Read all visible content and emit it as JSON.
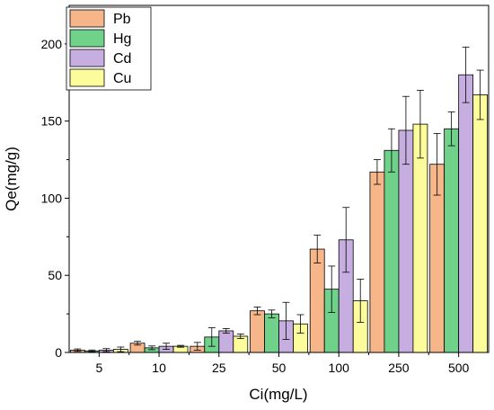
{
  "chart_data": {
    "type": "bar",
    "xlabel": "Ci(mg/L)",
    "ylabel": "Qe(mg/g)",
    "categories": [
      "5",
      "10",
      "25",
      "50",
      "100",
      "250",
      "500"
    ],
    "ylim": [
      0,
      225
    ],
    "yticks": [
      0,
      50,
      100,
      150,
      200
    ],
    "legend_position": "top-left",
    "series": [
      {
        "name": "Pb",
        "color": "#f7b58a",
        "values": [
          1.5,
          6,
          4,
          27,
          67,
          117,
          122
        ],
        "errors": [
          0.8,
          1.2,
          2.5,
          2.5,
          9,
          8,
          20
        ]
      },
      {
        "name": "Hg",
        "color": "#6fd18a",
        "values": [
          1,
          3,
          10,
          25,
          41,
          131,
          145
        ],
        "errors": [
          0.6,
          1.2,
          6,
          2.5,
          15,
          14,
          11
        ]
      },
      {
        "name": "Cd",
        "color": "#c6aee0",
        "values": [
          1.5,
          4,
          14,
          20.5,
          73,
          144,
          180
        ],
        "errors": [
          1,
          2,
          1.5,
          12,
          21,
          22,
          18
        ]
      },
      {
        "name": "Cu",
        "color": "#fcfc9c",
        "values": [
          2,
          4,
          10.5,
          18.5,
          33.5,
          148,
          167
        ],
        "errors": [
          1.5,
          0.6,
          1.5,
          6,
          14,
          22,
          16
        ]
      }
    ]
  }
}
